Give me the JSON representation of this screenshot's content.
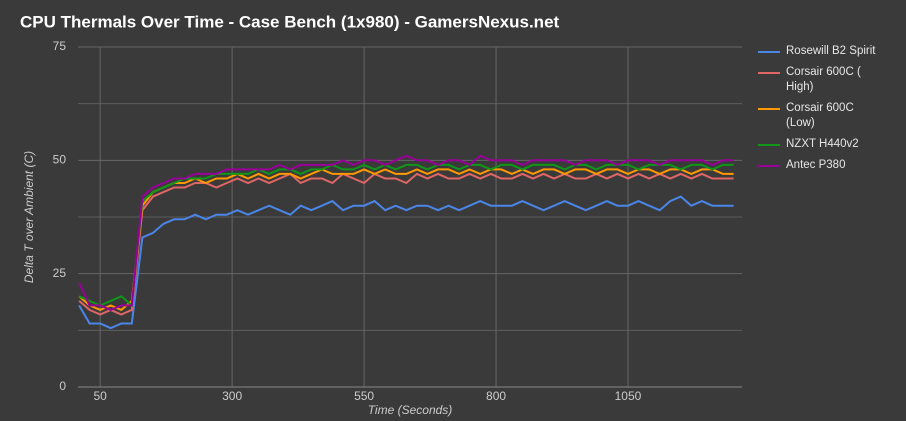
{
  "chart_data": {
    "type": "line",
    "title": "CPU Thermals Over Time - Case Bench (1x980) - GamersNexus.net",
    "x_label": "Time (Seconds)",
    "y_label": "Delta T over Ambient (C)",
    "x": [
      10,
      30,
      50,
      70,
      90,
      110,
      130,
      150,
      170,
      190,
      210,
      230,
      250,
      270,
      290,
      310,
      330,
      350,
      370,
      390,
      410,
      430,
      450,
      470,
      490,
      510,
      530,
      550,
      570,
      590,
      610,
      630,
      650,
      670,
      690,
      710,
      730,
      750,
      770,
      790,
      810,
      830,
      850,
      870,
      890,
      910,
      930,
      950,
      970,
      990,
      1010,
      1030,
      1050,
      1070,
      1090,
      1110,
      1130,
      1150,
      1170,
      1190,
      1210,
      1230,
      1250
    ],
    "series": [
      {
        "name": "Rosewill B2 Spirit",
        "color": "#4a86e8",
        "values": [
          18,
          14,
          14,
          13,
          14,
          14,
          33,
          34,
          36,
          37,
          37,
          38,
          37,
          38,
          38,
          39,
          38,
          39,
          40,
          39,
          38,
          40,
          39,
          40,
          41,
          39,
          40,
          40,
          41,
          39,
          40,
          39,
          40,
          40,
          39,
          40,
          39,
          40,
          41,
          40,
          40,
          40,
          41,
          40,
          39,
          40,
          41,
          40,
          39,
          40,
          41,
          40,
          40,
          41,
          40,
          39,
          41,
          42,
          40,
          41,
          40,
          40,
          40
        ]
      },
      {
        "name": "Corsair 600C ( High)",
        "color": "#e06666",
        "values": [
          19,
          17,
          16,
          17,
          16,
          17,
          39,
          42,
          43,
          44,
          44,
          45,
          45,
          44,
          45,
          46,
          45,
          46,
          45,
          46,
          47,
          45,
          46,
          46,
          45,
          47,
          46,
          45,
          47,
          46,
          46,
          45,
          47,
          46,
          47,
          46,
          46,
          47,
          46,
          47,
          46,
          46,
          47,
          46,
          47,
          46,
          47,
          46,
          46,
          47,
          46,
          47,
          46,
          47,
          46,
          47,
          46,
          47,
          46,
          47,
          46,
          46,
          46
        ]
      },
      {
        "name": "Corsair 600C (Low)",
        "color": "#ff9900",
        "values": [
          20,
          18,
          17,
          18,
          17,
          19,
          40,
          43,
          44,
          45,
          45,
          46,
          45,
          46,
          46,
          47,
          46,
          47,
          46,
          47,
          47,
          46,
          47,
          48,
          47,
          47,
          47,
          48,
          47,
          48,
          47,
          47,
          48,
          47,
          48,
          48,
          47,
          48,
          47,
          48,
          48,
          47,
          48,
          47,
          48,
          48,
          47,
          48,
          48,
          47,
          48,
          48,
          47,
          48,
          48,
          47,
          48,
          48,
          47,
          48,
          48,
          47,
          47
        ]
      },
      {
        "name": "NZXT H440v2",
        "color": "#109618",
        "values": [
          20,
          19,
          18,
          19,
          20,
          18,
          41,
          43,
          44,
          45,
          46,
          46,
          46,
          47,
          47,
          47,
          47,
          48,
          47,
          48,
          48,
          47,
          48,
          48,
          49,
          48,
          48,
          49,
          48,
          49,
          48,
          49,
          49,
          48,
          49,
          49,
          48,
          49,
          49,
          48,
          49,
          49,
          48,
          49,
          49,
          49,
          48,
          49,
          49,
          48,
          49,
          49,
          49,
          48,
          49,
          49,
          49,
          48,
          49,
          49,
          48,
          49,
          49
        ]
      },
      {
        "name": "Antec P380",
        "color": "#990099",
        "values": [
          23,
          18,
          18,
          17,
          18,
          18,
          42,
          44,
          45,
          46,
          46,
          47,
          47,
          47,
          48,
          48,
          48,
          48,
          48,
          49,
          48,
          49,
          49,
          49,
          49,
          50,
          49,
          50,
          50,
          49,
          50,
          51,
          50,
          50,
          49,
          50,
          50,
          49,
          51,
          50,
          50,
          50,
          49,
          50,
          50,
          50,
          50,
          49,
          50,
          50,
          50,
          49,
          50,
          50,
          50,
          49,
          50,
          50,
          50,
          50,
          49,
          50,
          50
        ]
      }
    ],
    "xlim": [
      8,
      1266
    ],
    "ylim": [
      0,
      75
    ],
    "xticks": [
      50,
      300,
      550,
      800,
      1050
    ],
    "yticks": [
      0,
      25,
      50,
      75
    ],
    "minor_yticks": [
      12.5,
      37.5,
      62.5
    ],
    "grid": true,
    "legend": "right"
  }
}
